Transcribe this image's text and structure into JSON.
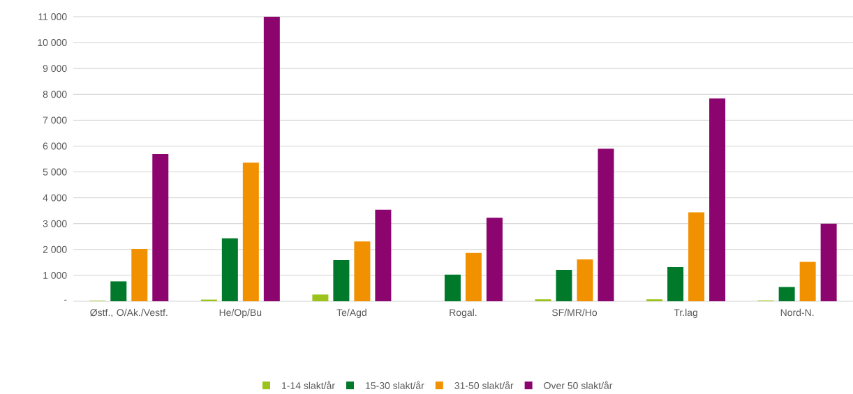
{
  "chart_data": {
    "type": "bar",
    "categories": [
      "Østf., O/Ak./Vestf.",
      "He/Op/Bu",
      "Te/Agd",
      "Rogal.",
      "SF/MR/Ho",
      "Tr.lag",
      "Nord-N."
    ],
    "series": [
      {
        "name": "1-14 slakt/år",
        "color": "#9bc31c",
        "values": [
          20,
          65,
          260,
          0,
          75,
          75,
          30
        ]
      },
      {
        "name": "15-30 slakt/år",
        "color": "#007a2a",
        "values": [
          770,
          2430,
          1590,
          1030,
          1210,
          1320,
          550
        ]
      },
      {
        "name": "31-50 slakt/år",
        "color": "#f29100",
        "values": [
          2020,
          5360,
          2310,
          1870,
          1620,
          3440,
          1520
        ]
      },
      {
        "name": "Over 50 slakt/år",
        "color": "#8c056e",
        "values": [
          5690,
          11000,
          3540,
          3230,
          5900,
          7840,
          3000
        ]
      }
    ],
    "ylim": [
      0,
      11000
    ],
    "yticks": [
      {
        "value": 0,
        "label": "-"
      },
      {
        "value": 1000,
        "label": "1 000"
      },
      {
        "value": 2000,
        "label": "2 000"
      },
      {
        "value": 3000,
        "label": "3 000"
      },
      {
        "value": 4000,
        "label": "4 000"
      },
      {
        "value": 5000,
        "label": "5 000"
      },
      {
        "value": 6000,
        "label": "6 000"
      },
      {
        "value": 7000,
        "label": "7 000"
      },
      {
        "value": 8000,
        "label": "8 000"
      },
      {
        "value": 9000,
        "label": "9 000"
      },
      {
        "value": 10000,
        "label": "10 000"
      },
      {
        "value": 11000,
        "label": "11 000"
      }
    ],
    "grid": "y",
    "legend": "bottom"
  }
}
